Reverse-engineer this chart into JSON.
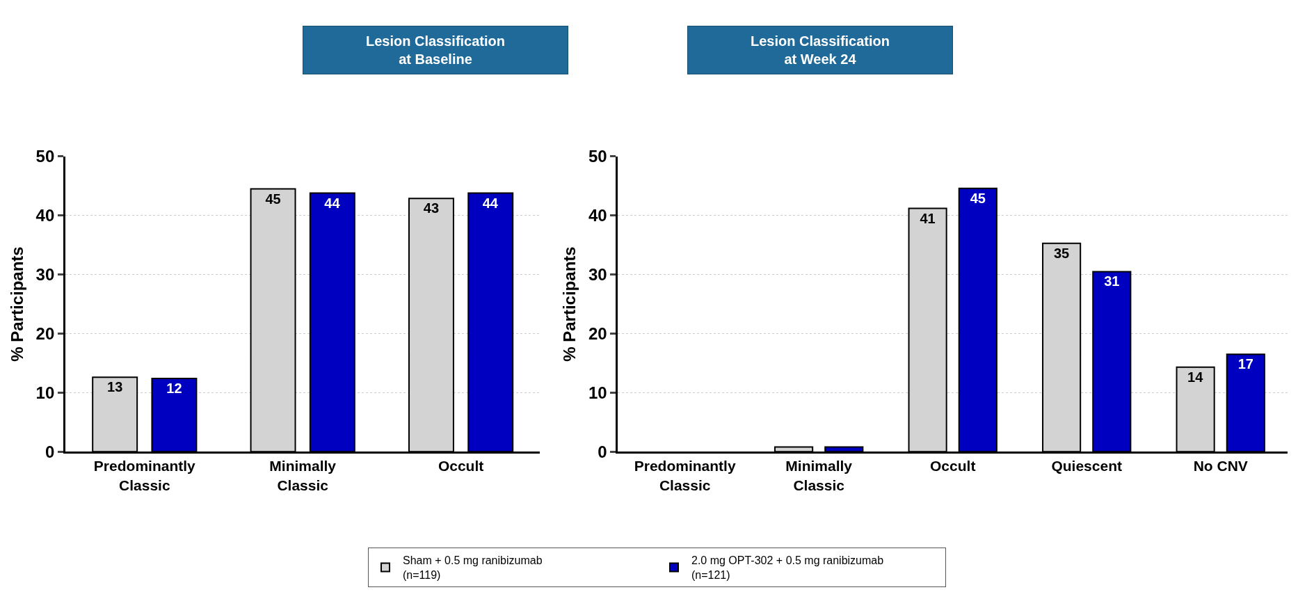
{
  "chart_data": [
    {
      "type": "bar",
      "title": "Lesion Classification\nat Baseline",
      "ylabel": "% Participants",
      "categories": [
        "Predominantly\nClassic",
        "Minimally\nClassic",
        "Occult"
      ],
      "series": [
        {
          "name": "Sham + 0.5 mg ranibizumab\n(n=119)",
          "color": "#d3d3d3",
          "values": [
            12.6,
            44.5,
            42.9
          ],
          "value_labels": [
            "13",
            "45",
            "43"
          ]
        },
        {
          "name": "2.0 mg OPT-302 + 0.5 mg ranibizumab\n(n=121)",
          "color": "#0000c0",
          "values": [
            12.4,
            43.8,
            43.8
          ],
          "value_labels": [
            "12",
            "44",
            "44"
          ]
        }
      ],
      "ylim": [
        0,
        50
      ],
      "yticks": [
        0,
        10,
        20,
        30,
        40,
        50
      ],
      "grid": "y",
      "legend": "bottom"
    },
    {
      "type": "bar",
      "title": "Lesion Classification\nat Week 24",
      "ylabel": "% Participants",
      "categories": [
        "Predominantly\nClassic",
        "Minimally\nClassic",
        "Occult",
        "Quiescent",
        "No CNV"
      ],
      "series": [
        {
          "name": "Sham + 0.5 mg ranibizumab\n(n=119)",
          "color": "#d3d3d3",
          "values": [
            null,
            0.8,
            41.2,
            35.3,
            14.3
          ],
          "value_labels": [
            null,
            null,
            "41",
            "35",
            "14"
          ]
        },
        {
          "name": "2.0 mg OPT-302 + 0.5 mg ranibizumab\n(n=121)",
          "color": "#0000c0",
          "values": [
            null,
            0.8,
            44.6,
            30.5,
            16.5
          ],
          "value_labels": [
            null,
            null,
            "45",
            "31",
            "17"
          ]
        }
      ],
      "ylim": [
        0,
        50
      ],
      "yticks": [
        0,
        10,
        20,
        30,
        40,
        50
      ],
      "grid": "y",
      "legend": "bottom"
    }
  ]
}
